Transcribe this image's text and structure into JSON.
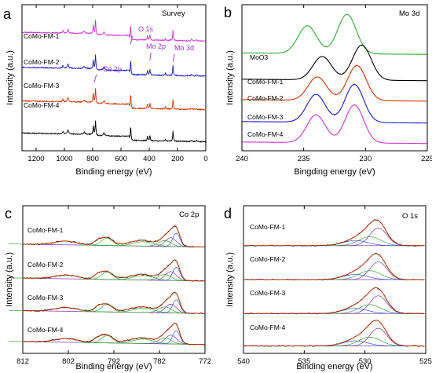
{
  "figure": {
    "panels": [
      "a",
      "b",
      "c",
      "d"
    ]
  },
  "colors": {
    "black": "#000000",
    "magenta": "#cc33cc",
    "blue": "#1a1acc",
    "red": "#cc3300",
    "green": "#33aa33",
    "purple": "#8844aa",
    "annotation": "#9a33cc",
    "fit_green": "#3aa13a",
    "fit_blue": "#3355dd",
    "fit_purple": "#7a3aa0"
  },
  "chart_data": [
    {
      "panel": "a",
      "type": "line",
      "title": "Survey",
      "xlabel": "Binding energy (eV)",
      "ylabel": "Intensity (a.u.)",
      "xlim": [
        1300,
        0
      ],
      "ylim": [
        0,
        1
      ],
      "xticks": [
        1200,
        1000,
        800,
        600,
        400,
        200,
        0
      ],
      "peak_labels": [
        "Co 2p",
        "O 1s",
        "Mo 2p",
        "Mo 3d"
      ],
      "series": [
        {
          "name": "CoMo-FM-1",
          "color": "#cc33cc",
          "offset": 0.74
        },
        {
          "name": "CoMo-FM-2",
          "color": "#1a1acc",
          "offset": 0.5
        },
        {
          "name": "CoMo-FM-3",
          "color": "#cc3300",
          "offset": 0.27
        },
        {
          "name": "CoMo-FM-4",
          "color": "#000000",
          "offset": 0.05
        }
      ]
    },
    {
      "panel": "b",
      "type": "line",
      "title": "Mo 3d",
      "xlabel": "Bingding energy (eV)",
      "ylabel": "Intensity (a.u.)",
      "xlim": [
        240,
        225
      ],
      "xticks": [
        240,
        235,
        230,
        225
      ],
      "series": [
        {
          "name": "MoO3",
          "color": "#33aa33",
          "offset": 0.66,
          "peaks": [
            [
              231.5,
              0.27
            ],
            [
              234.7,
              0.19
            ]
          ]
        },
        {
          "name": "CoMo-FM-1",
          "color": "#000000",
          "offset": 0.48,
          "peaks": [
            [
              230.3,
              0.24
            ],
            [
              233.5,
              0.16
            ]
          ]
        },
        {
          "name": "CoMo-FM-2",
          "color": "#cc3300",
          "offset": 0.34,
          "peaks": [
            [
              230.7,
              0.24
            ],
            [
              233.9,
              0.16
            ]
          ]
        },
        {
          "name": "CoMo-FM-3",
          "color": "#1a1acc",
          "offset": 0.19,
          "peaks": [
            [
              230.9,
              0.26
            ],
            [
              234.0,
              0.19
            ]
          ]
        },
        {
          "name": "CoMo-FM-4",
          "color": "#cc33cc",
          "offset": 0.05,
          "peaks": [
            [
              230.9,
              0.26
            ],
            [
              234.0,
              0.19
            ]
          ]
        }
      ]
    },
    {
      "panel": "c",
      "type": "line",
      "title": "Co 2p",
      "xlabel": "Binding energy (eV)",
      "ylabel": "Intensity (a.u.)",
      "xlim": [
        812,
        772
      ],
      "xticks": [
        812,
        802,
        792,
        782,
        772
      ],
      "series": [
        {
          "name": "CoMo-FM-1",
          "offset": 0.7
        },
        {
          "name": "CoMo-FM-2",
          "offset": 0.47
        },
        {
          "name": "CoMo-FM-3",
          "offset": 0.25
        },
        {
          "name": "CoMo-FM-4",
          "offset": 0.04
        }
      ]
    },
    {
      "panel": "d",
      "type": "line",
      "title": "O 1s",
      "xlabel": "Binding energy (eV)",
      "ylabel": "Intensity (a.u.)",
      "xlim": [
        540,
        525
      ],
      "xticks": [
        540,
        535,
        530,
        525
      ],
      "series": [
        {
          "name": "CoMo-FM-1",
          "offset": 0.72
        },
        {
          "name": "CoMo-FM-2",
          "offset": 0.49
        },
        {
          "name": "CoMo-FM-3",
          "offset": 0.26
        },
        {
          "name": "CoMo-FM-4",
          "offset": 0.04
        }
      ]
    }
  ]
}
